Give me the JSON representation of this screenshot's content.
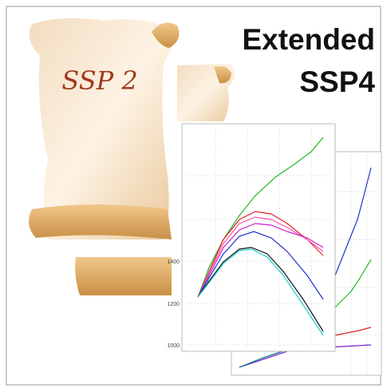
{
  "heading": {
    "line1": "Extended",
    "line2": "SSP4"
  },
  "scroll_label": "SSP 2",
  "chart_thumbnail": {
    "yticks": [
      "1400",
      "1200",
      "1000"
    ]
  }
}
